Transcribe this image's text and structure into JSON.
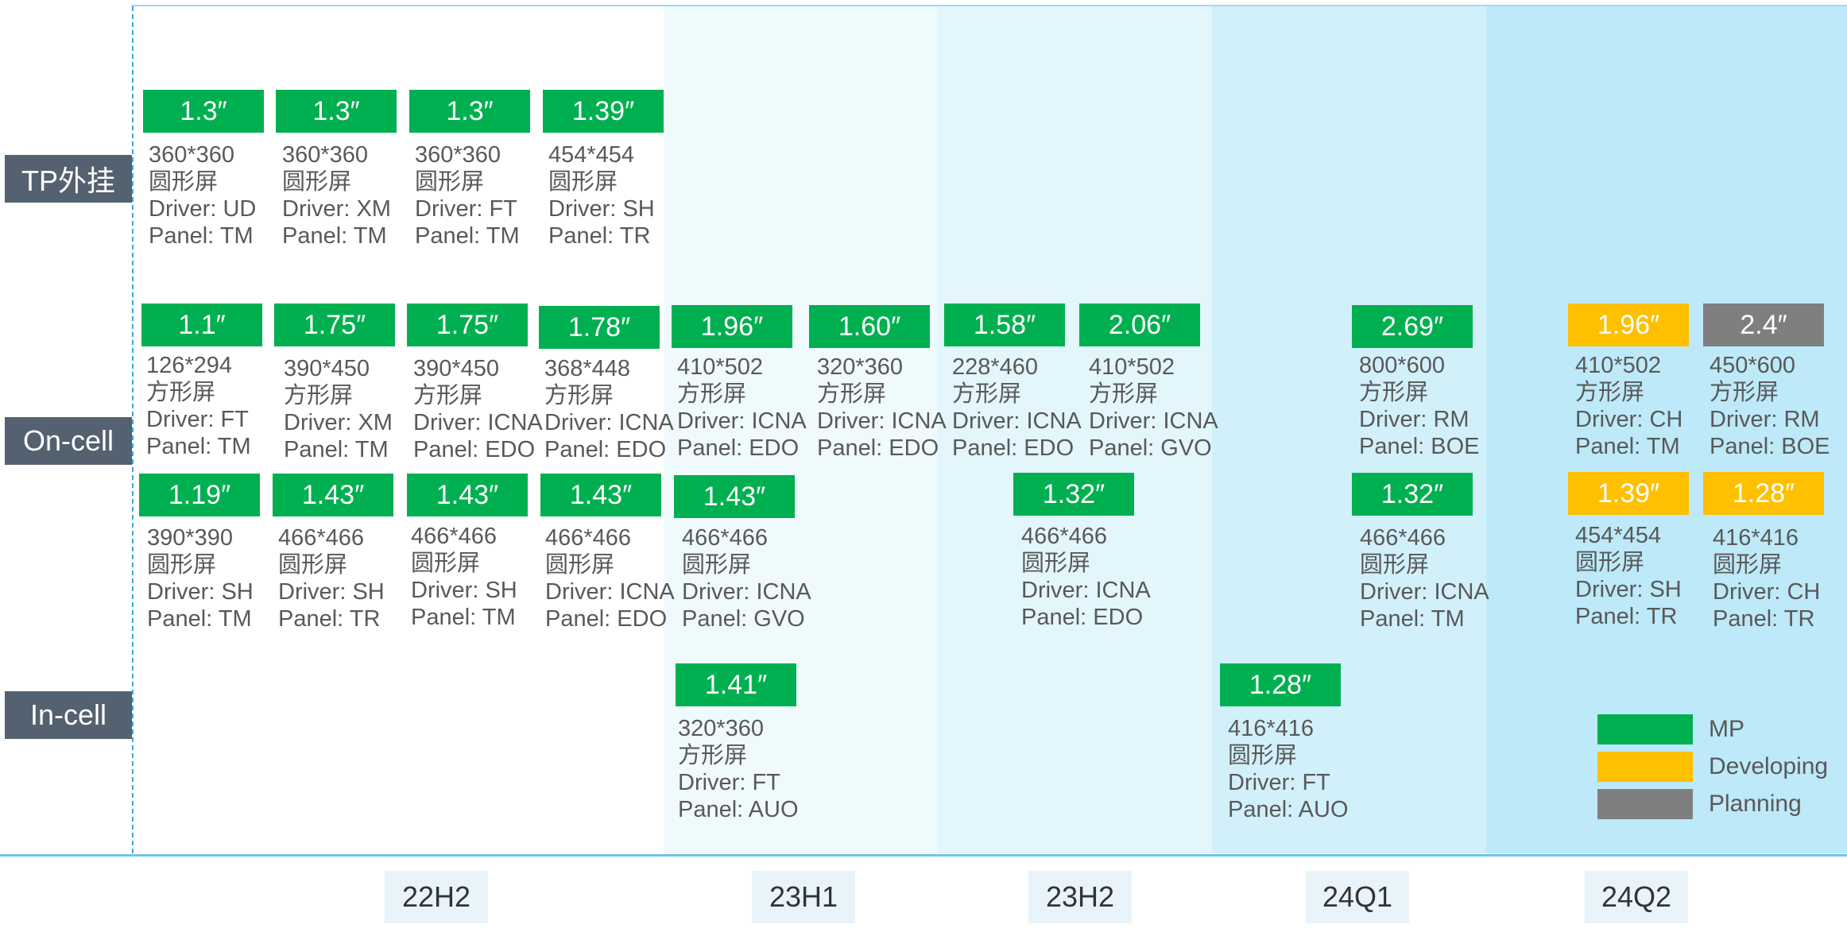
{
  "colors": {
    "mp": "#00b050",
    "developing": "#ffc000",
    "planning": "#7f7f7f"
  },
  "rows": {
    "tp": {
      "label": "TP外挂"
    },
    "oncell": {
      "label": "On-cell"
    },
    "incell": {
      "label": "In-cell"
    }
  },
  "periods": [
    "22H2",
    "23H1",
    "23H2",
    "24Q1",
    "24Q2"
  ],
  "legend": [
    {
      "label": "MP",
      "status": "mp"
    },
    {
      "label": "Developing",
      "status": "developing"
    },
    {
      "label": "Planning",
      "status": "planning"
    }
  ],
  "products": [
    {
      "row": "TP外挂",
      "period": "22H2",
      "status": "mp",
      "size": "1.3″",
      "resolution": "360*360",
      "shape": "圆形屏",
      "driver": "Driver: UD",
      "panel": "Panel: TM"
    },
    {
      "row": "TP外挂",
      "period": "22H2",
      "status": "mp",
      "size": "1.3″",
      "resolution": "360*360",
      "shape": "圆形屏",
      "driver": "Driver: XM",
      "panel": "Panel: TM"
    },
    {
      "row": "TP外挂",
      "period": "22H2",
      "status": "mp",
      "size": "1.3″",
      "resolution": "360*360",
      "shape": "圆形屏",
      "driver": "Driver: FT",
      "panel": "Panel: TM"
    },
    {
      "row": "TP外挂",
      "period": "22H2",
      "status": "mp",
      "size": "1.39″",
      "resolution": "454*454",
      "shape": "圆形屏",
      "driver": "Driver: SH",
      "panel": "Panel: TR"
    },
    {
      "row": "On-cell",
      "period": "22H2",
      "status": "mp",
      "size": "1.1″",
      "resolution": "126*294",
      "shape": "方形屏",
      "driver": "Driver: FT",
      "panel": "Panel: TM"
    },
    {
      "row": "On-cell",
      "period": "22H2",
      "status": "mp",
      "size": "1.75″",
      "resolution": "390*450",
      "shape": "方形屏",
      "driver": "Driver: XM",
      "panel": "Panel: TM"
    },
    {
      "row": "On-cell",
      "period": "22H2",
      "status": "mp",
      "size": "1.75″",
      "resolution": "390*450",
      "shape": "方形屏",
      "driver": "Driver: ICNA",
      "panel": "Panel: EDO"
    },
    {
      "row": "On-cell",
      "period": "22H2",
      "status": "mp",
      "size": "1.78″",
      "resolution": "368*448",
      "shape": "方形屏",
      "driver": "Driver: ICNA",
      "panel": "Panel: EDO"
    },
    {
      "row": "On-cell",
      "period": "23H1",
      "status": "mp",
      "size": "1.96″",
      "resolution": "410*502",
      "shape": "方形屏",
      "driver": "Driver: ICNA",
      "panel": "Panel: EDO"
    },
    {
      "row": "On-cell",
      "period": "23H1",
      "status": "mp",
      "size": "1.60″",
      "resolution": "320*360",
      "shape": "方形屏",
      "driver": "Driver: ICNA",
      "panel": "Panel: EDO"
    },
    {
      "row": "On-cell",
      "period": "23H2",
      "status": "mp",
      "size": "1.58″",
      "resolution": "228*460",
      "shape": "方形屏",
      "driver": "Driver: ICNA",
      "panel": "Panel: EDO"
    },
    {
      "row": "On-cell",
      "period": "23H2",
      "status": "mp",
      "size": "2.06″",
      "resolution": "410*502",
      "shape": "方形屏",
      "driver": "Driver: ICNA",
      "panel": "Panel: GVO"
    },
    {
      "row": "On-cell",
      "period": "24Q1",
      "status": "mp",
      "size": "2.69″",
      "resolution": "800*600",
      "shape": "方形屏",
      "driver": "Driver: RM",
      "panel": "Panel: BOE"
    },
    {
      "row": "On-cell",
      "period": "24Q2",
      "status": "developing",
      "size": "1.96″",
      "resolution": "410*502",
      "shape": "方形屏",
      "driver": "Driver: CH",
      "panel": "Panel: TM"
    },
    {
      "row": "On-cell",
      "period": "24Q2",
      "status": "planning",
      "size": "2.4″",
      "resolution": "450*600",
      "shape": "方形屏",
      "driver": "Driver: RM",
      "panel": "Panel: BOE"
    },
    {
      "row": "On-cell",
      "period": "22H2",
      "status": "mp",
      "size": "1.19″",
      "resolution": "390*390",
      "shape": "圆形屏",
      "driver": "Driver: SH",
      "panel": "Panel: TM"
    },
    {
      "row": "On-cell",
      "period": "22H2",
      "status": "mp",
      "size": "1.43″",
      "resolution": "466*466",
      "shape": "圆形屏",
      "driver": "Driver: SH",
      "panel": "Panel: TR"
    },
    {
      "row": "On-cell",
      "period": "22H2",
      "status": "mp",
      "size": "1.43″",
      "resolution": "466*466",
      "shape": "圆形屏",
      "driver": "Driver: SH",
      "panel": "Panel: TM"
    },
    {
      "row": "On-cell",
      "period": "22H2",
      "status": "mp",
      "size": "1.43″",
      "resolution": "466*466",
      "shape": "圆形屏",
      "driver": "Driver: ICNA",
      "panel": "Panel: EDO"
    },
    {
      "row": "On-cell",
      "period": "23H1",
      "status": "mp",
      "size": "1.43″",
      "resolution": "466*466",
      "shape": "圆形屏",
      "driver": "Driver: ICNA",
      "panel": "Panel: GVO"
    },
    {
      "row": "On-cell",
      "period": "23H2",
      "status": "mp",
      "size": "1.32″",
      "resolution": "466*466",
      "shape": "圆形屏",
      "driver": "Driver: ICNA",
      "panel": "Panel: EDO"
    },
    {
      "row": "On-cell",
      "period": "24Q1",
      "status": "mp",
      "size": "1.32″",
      "resolution": "466*466",
      "shape": "圆形屏",
      "driver": "Driver: ICNA",
      "panel": "Panel: TM"
    },
    {
      "row": "On-cell",
      "period": "24Q2",
      "status": "developing",
      "size": "1.39″",
      "resolution": "454*454",
      "shape": "圆形屏",
      "driver": "Driver: SH",
      "panel": "Panel: TR"
    },
    {
      "row": "On-cell",
      "period": "24Q2",
      "status": "developing",
      "size": "1.28″",
      "resolution": "416*416",
      "shape": "圆形屏",
      "driver": "Driver: CH",
      "panel": "Panel: TR"
    },
    {
      "row": "In-cell",
      "period": "23H1",
      "status": "mp",
      "size": "1.41″",
      "resolution": "320*360",
      "shape": "方形屏",
      "driver": "Driver: FT",
      "panel": "Panel: AUO"
    },
    {
      "row": "In-cell",
      "period": "24Q1",
      "status": "mp",
      "size": "1.28″",
      "resolution": "416*416",
      "shape": "圆形屏",
      "driver": "Driver: FT",
      "panel": "Panel: AUO"
    }
  ]
}
